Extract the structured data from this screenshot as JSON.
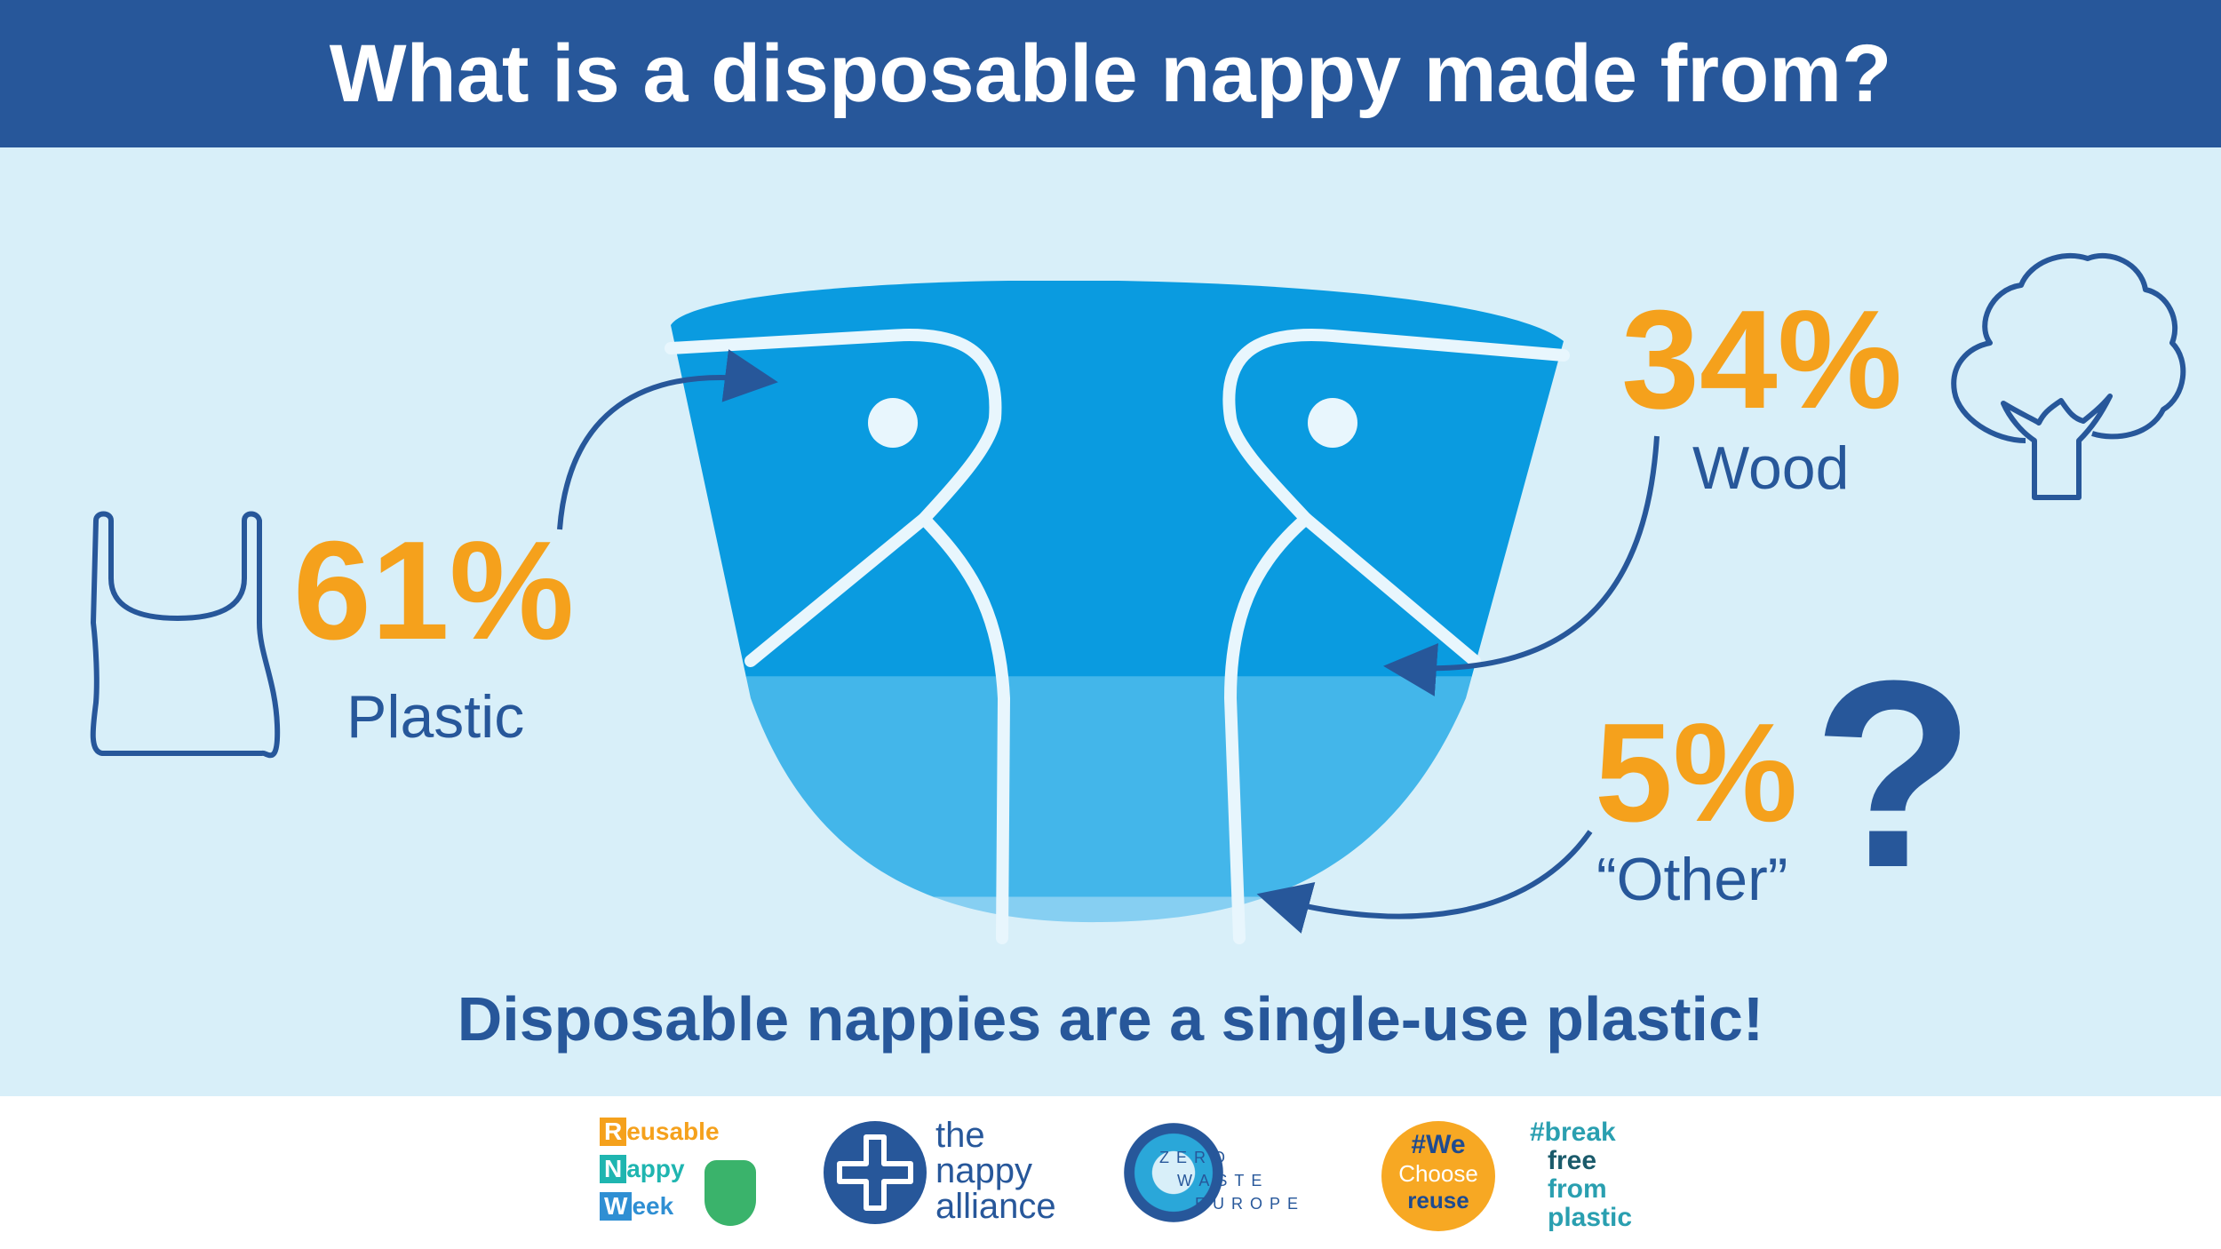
{
  "title": "What is a disposable nappy made from?",
  "chart_data": {
    "type": "pie",
    "categories": [
      "Plastic",
      "Wood",
      "“Other”"
    ],
    "values": [
      61,
      34,
      5
    ],
    "value_labels": [
      "61%",
      "34%",
      "5%"
    ]
  },
  "icons": {
    "plastic": "plastic-bag-icon",
    "wood": "tree-icon",
    "other": "question-mark-icon"
  },
  "tagline": "Disposable nappies are a single-use plastic!",
  "colors": {
    "header": "#27579a",
    "background": "#d8eff9",
    "accent": "#f5a11c",
    "nappy_plastic": "#0a9be0",
    "nappy_wood": "#43b6ea",
    "nappy_other": "#86cff2"
  },
  "logos": {
    "reusable_nappy_week": {
      "r": "R",
      "r_rest": "eusable",
      "n": "N",
      "n_rest": "appy",
      "w": "W",
      "w_rest": "eek"
    },
    "nappy_alliance": {
      "line1": "the",
      "line2": "nappy",
      "line3": "alliance"
    },
    "zero_waste_europe": {
      "line1": "ZERO",
      "line2": "WASTE",
      "line3": "EUROPE"
    },
    "we_choose_reuse": {
      "line1": "#We",
      "line2": "Choose",
      "line3": "reuse"
    },
    "break_free": {
      "line1": "#break",
      "line2": "free",
      "line3": "from",
      "line4": "plastic"
    }
  }
}
